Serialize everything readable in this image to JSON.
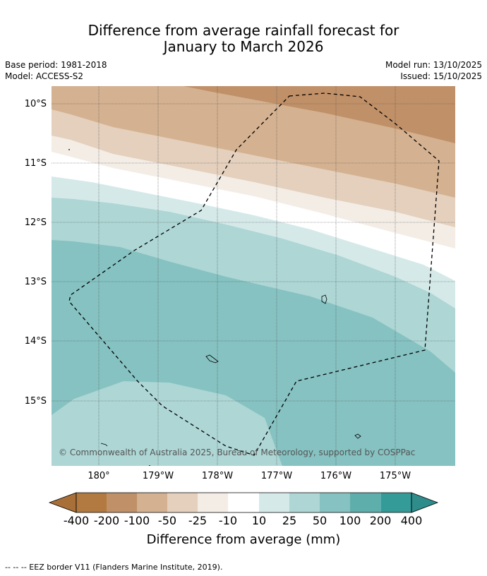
{
  "title": {
    "line1": "Difference from average rainfall forecast for",
    "line2": "January to March 2026"
  },
  "meta": {
    "base_period": "Base period: 1981-2018",
    "model": "Model: ACCESS-S2",
    "model_run": "Model run: 13/10/2025",
    "issued": "Issued: 15/10/2025"
  },
  "map": {
    "lat_labels": [
      "10°S",
      "11°S",
      "12°S",
      "13°S",
      "14°S",
      "15°S"
    ],
    "lon_labels": [
      "180°",
      "179°W",
      "178°W",
      "177°W",
      "176°W",
      "175°W"
    ],
    "copyright": "© Commonwealth of Australia 2025, Bureau of Meteorology, supported by COSPPac"
  },
  "legend": {
    "ticks": [
      "-400",
      "-200",
      "-100",
      "-50",
      "-25",
      "-10",
      "10",
      "25",
      "50",
      "100",
      "200",
      "400"
    ],
    "colors": [
      "#a87038",
      "#b27a40",
      "#c09068",
      "#d4b190",
      "#e4d0bd",
      "#f3ede6",
      "#ffffff",
      "#d5e9e9",
      "#add6d5",
      "#85c2c1",
      "#5eaeac",
      "#349b99",
      "#2e8c8a"
    ],
    "label": "Difference from average (mm)"
  },
  "footer": {
    "eez_note": "--  --  -- EEZ border V11 (Flanders Marine Institute, 2019)."
  }
}
